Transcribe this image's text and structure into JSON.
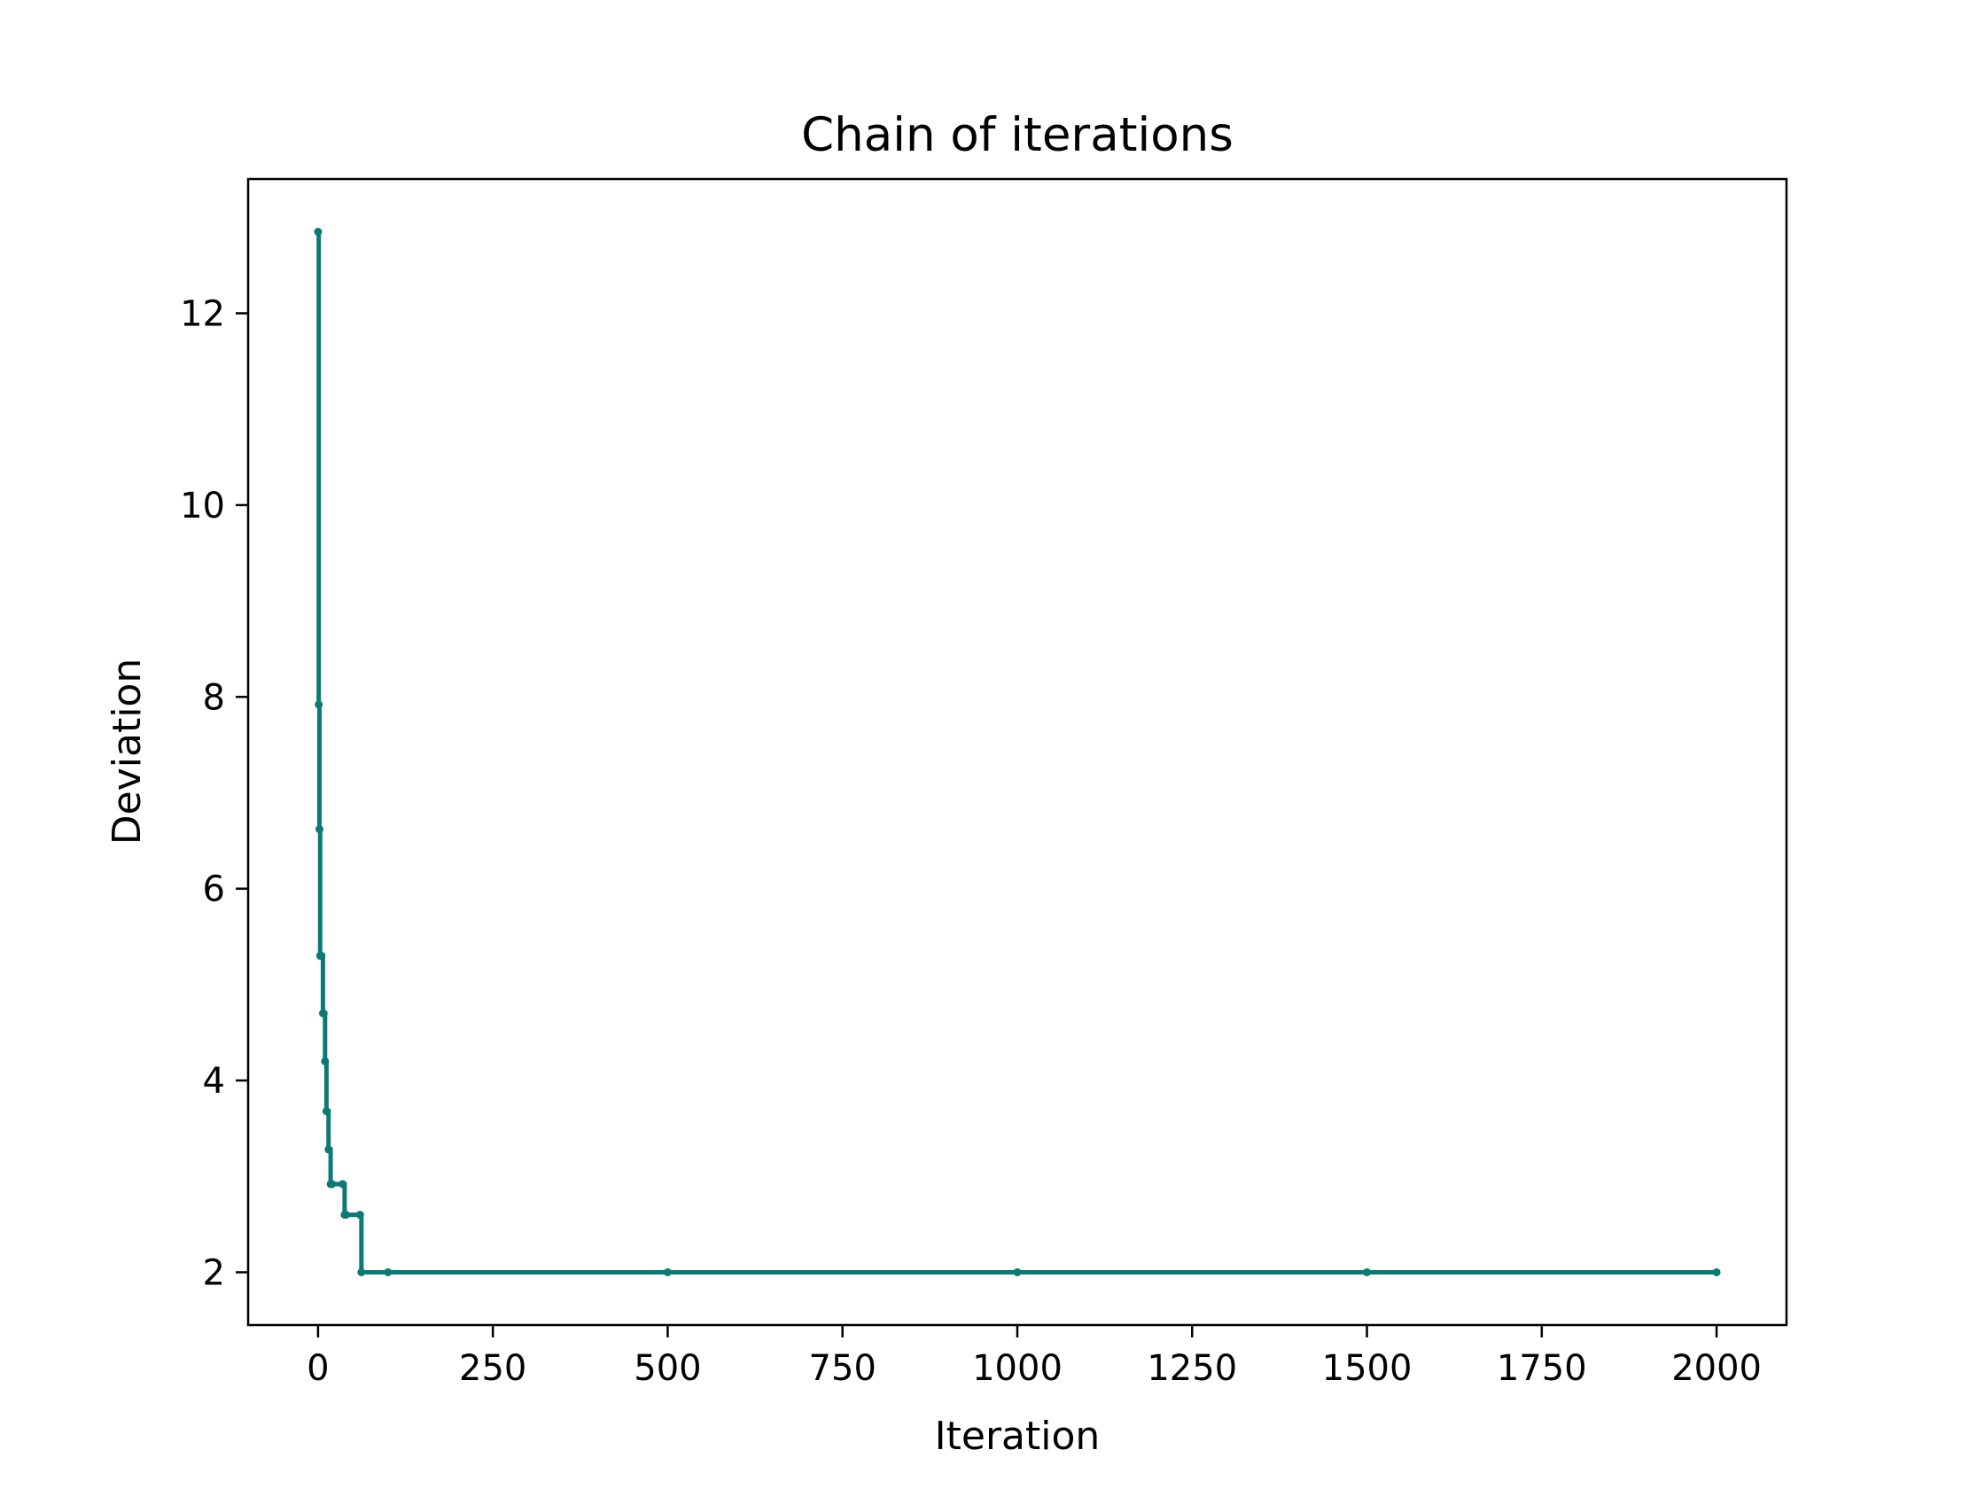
{
  "chart_data": {
    "type": "line",
    "title": "Chain of iterations",
    "xlabel": "Iteration",
    "ylabel": "Deviation",
    "xlim": [
      -100,
      2100
    ],
    "ylim": [
      1.45,
      13.4
    ],
    "xticks": [
      0,
      250,
      500,
      750,
      1000,
      1250,
      1500,
      1750,
      2000
    ],
    "yticks": [
      2,
      4,
      6,
      8,
      10,
      12
    ],
    "grid": false,
    "legend": "none",
    "line_color": "#0b7a75",
    "series": [
      {
        "x": [
          0,
          1,
          2,
          3,
          5,
          7,
          8,
          10,
          12,
          15,
          18,
          20,
          35,
          38,
          40,
          60,
          62,
          100,
          500,
          1000,
          1500,
          2000
        ],
        "y": [
          12.85,
          7.92,
          6.62,
          5.3,
          5.3,
          4.7,
          4.7,
          4.2,
          3.68,
          3.28,
          2.92,
          2.92,
          2.92,
          2.6,
          2.6,
          2.6,
          2.0,
          2.0,
          2.0,
          2.0,
          2.0,
          2.0
        ],
        "step_after": true
      }
    ]
  }
}
